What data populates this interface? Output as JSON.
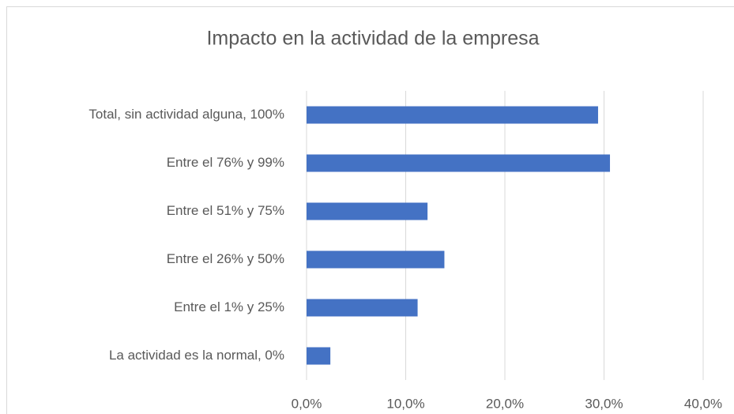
{
  "chart_data": {
    "type": "bar",
    "orientation": "horizontal",
    "title": "Impacto en la actividad de la empresa",
    "categories": [
      "Total, sin actividad alguna, 100%",
      "Entre el 76% y 99%",
      "Entre el 51% y 75%",
      "Entre el 26% y 50%",
      "Entre el 1% y 25%",
      "La actividad es la normal, 0%"
    ],
    "values": [
      29.4,
      30.6,
      12.2,
      13.9,
      11.2,
      2.4
    ],
    "color": "#4472c4",
    "xlim": [
      0,
      40
    ],
    "xticks": [
      {
        "value": 0,
        "label": "0,0%"
      },
      {
        "value": 10,
        "label": "10,0%"
      },
      {
        "value": 20,
        "label": "20,0%"
      },
      {
        "value": 30,
        "label": "30,0%"
      },
      {
        "value": 40,
        "label": "40,0%"
      }
    ],
    "grid": true
  }
}
